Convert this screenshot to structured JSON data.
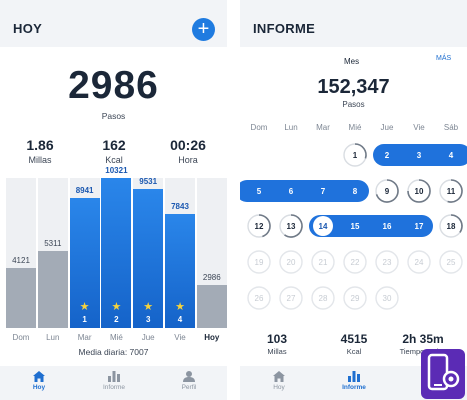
{
  "left": {
    "title": "HOY",
    "steps": "2986",
    "steps_label": "Pasos",
    "stats": [
      {
        "value": "1.86",
        "label": "Millas"
      },
      {
        "value": "162",
        "label": "Kcal"
      },
      {
        "value": "00:26",
        "label": "Hora"
      }
    ],
    "bars": [
      {
        "day": "Dom",
        "value": 4121,
        "value_label": "4121",
        "style": "grey",
        "star": ""
      },
      {
        "day": "Lun",
        "value": 5311,
        "value_label": "5311",
        "style": "grey",
        "star": ""
      },
      {
        "day": "Mar",
        "value": 8941,
        "value_label": "8941",
        "style": "blue",
        "star": "1"
      },
      {
        "day": "Mié",
        "value": 10321,
        "value_label": "10321",
        "style": "blue",
        "star": "2"
      },
      {
        "day": "Jue",
        "value": 9531,
        "value_label": "9531",
        "style": "blue",
        "star": "3"
      },
      {
        "day": "Vie",
        "value": 7843,
        "value_label": "7843",
        "style": "blue",
        "star": "4"
      },
      {
        "day": "Hoy",
        "value": 2986,
        "value_label": "2986",
        "style": "grey",
        "star": ""
      }
    ],
    "average": "Media diaria: 7007"
  },
  "right": {
    "title": "INFORME",
    "tab_mes": "Mes",
    "mas": "MÁS",
    "steps": "152,347",
    "steps_label": "Pasos",
    "weekdays": [
      "Dom",
      "Lun",
      "Mar",
      "Mié",
      "Jue",
      "Vie",
      "Sáb"
    ],
    "calendar": [
      [
        "",
        "",
        "",
        "1",
        "2",
        "3",
        "4"
      ],
      [
        "5",
        "6",
        "7",
        "8",
        "9",
        "10",
        "11"
      ],
      [
        "12",
        "13",
        "14",
        "15",
        "16",
        "17",
        "18"
      ],
      [
        "19",
        "20",
        "21",
        "22",
        "23",
        "24",
        "25"
      ],
      [
        "26",
        "27",
        "28",
        "29",
        "30",
        "",
        ""
      ]
    ],
    "goal_met_days": [
      "2",
      "3",
      "4",
      "5",
      "6",
      "7",
      "8",
      "14",
      "15",
      "16",
      "17"
    ],
    "today": "14",
    "stats": [
      {
        "value": "103",
        "label": "Millas"
      },
      {
        "value": "4515",
        "label": "Kcal"
      },
      {
        "value": "2h 35m",
        "label": "Tiempo Activo"
      }
    ]
  },
  "tabs": [
    {
      "label": "Hoy",
      "icon": "home-icon"
    },
    {
      "label": "Informe",
      "icon": "bar-chart-icon"
    },
    {
      "label": "Perfil",
      "icon": "profile-icon"
    }
  ],
  "colors": {
    "accent": "#1f7be0",
    "bar_grey": "#a3abb6",
    "topbar": "#f2f4f7",
    "star": "#f6d33c"
  }
}
